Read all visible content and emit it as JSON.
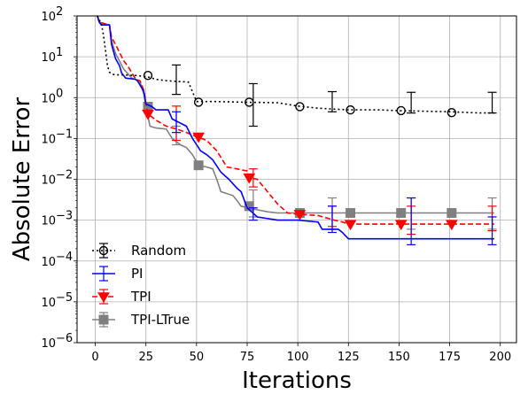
{
  "chart_data": {
    "type": "line",
    "xlabel": "Iterations",
    "ylabel": "Absolute Error",
    "xlim": [
      -9,
      208
    ],
    "ylim_log10": [
      -6,
      2
    ],
    "yscale": "log",
    "grid": true,
    "legend_position": "lower-left",
    "x_ticks": [
      {
        "value": 0,
        "label": "0"
      },
      {
        "value": 25,
        "label": "25"
      },
      {
        "value": 50,
        "label": "50"
      },
      {
        "value": 75,
        "label": "75"
      },
      {
        "value": 100,
        "label": "100"
      },
      {
        "value": 125,
        "label": "125"
      },
      {
        "value": 150,
        "label": "150"
      },
      {
        "value": 175,
        "label": "175"
      },
      {
        "value": 200,
        "label": "200"
      }
    ],
    "y_ticks": [
      {
        "exp": 2,
        "base": "10",
        "sup": "2"
      },
      {
        "exp": 1,
        "base": "10",
        "sup": "1"
      },
      {
        "exp": 0,
        "base": "10",
        "sup": "0"
      },
      {
        "exp": -1,
        "base": "10",
        "sup": "−1"
      },
      {
        "exp": -2,
        "base": "10",
        "sup": "−2"
      },
      {
        "exp": -3,
        "base": "10",
        "sup": "−3"
      },
      {
        "exp": -4,
        "base": "10",
        "sup": "−4"
      },
      {
        "exp": -5,
        "base": "10",
        "sup": "−5"
      },
      {
        "exp": -6,
        "base": "10",
        "sup": "−6"
      }
    ],
    "series": [
      {
        "name": "Random",
        "color": "#000000",
        "dash": "dotted",
        "marker": "circle-open",
        "line": [
          [
            1,
            100
          ],
          [
            2,
            80
          ],
          [
            3,
            65
          ],
          [
            4,
            35
          ],
          [
            5,
            15
          ],
          [
            6,
            6
          ],
          [
            7,
            4.2
          ],
          [
            8,
            3.8
          ],
          [
            10,
            3.6
          ],
          [
            14,
            3.6
          ],
          [
            20,
            3.5
          ],
          [
            26,
            3.2
          ],
          [
            30,
            2.8
          ],
          [
            35,
            2.6
          ],
          [
            40,
            2.5
          ],
          [
            46,
            2.4
          ],
          [
            50,
            0.8
          ],
          [
            60,
            0.8
          ],
          [
            75,
            0.77
          ],
          [
            90,
            0.75
          ],
          [
            100,
            0.62
          ],
          [
            110,
            0.55
          ],
          [
            125,
            0.5
          ],
          [
            140,
            0.5
          ],
          [
            150,
            0.48
          ],
          [
            175,
            0.45
          ],
          [
            190,
            0.42
          ],
          [
            197,
            0.42
          ]
        ],
        "markers": [
          [
            26,
            3.5
          ],
          [
            51,
            0.77
          ],
          [
            76,
            0.77
          ],
          [
            101,
            0.6
          ],
          [
            126,
            0.5
          ],
          [
            151,
            0.48
          ],
          [
            176,
            0.43
          ]
        ],
        "errorbars": [
          [
            40,
            2.5,
            1.2,
            6.3
          ],
          [
            78,
            0.77,
            0.2,
            2.2
          ],
          [
            117,
            0.55,
            0.45,
            1.4
          ],
          [
            156,
            0.5,
            0.42,
            1.35
          ],
          [
            196,
            0.42,
            0.42,
            1.35
          ]
        ]
      },
      {
        "name": "PI",
        "color": "#0000ff",
        "dash": "solid",
        "marker": "none",
        "line": [
          [
            1,
            100
          ],
          [
            2,
            70
          ],
          [
            3,
            60
          ],
          [
            7,
            60
          ],
          [
            8,
            20
          ],
          [
            10,
            9
          ],
          [
            12,
            6
          ],
          [
            13,
            4
          ],
          [
            15,
            3
          ],
          [
            20,
            2.8
          ],
          [
            21,
            2.5
          ],
          [
            24,
            1.4
          ],
          [
            25,
            0.7
          ],
          [
            28,
            0.6
          ],
          [
            30,
            0.5
          ],
          [
            36,
            0.5
          ],
          [
            38,
            0.3
          ],
          [
            45,
            0.2
          ],
          [
            48,
            0.1
          ],
          [
            52,
            0.05
          ],
          [
            55,
            0.04
          ],
          [
            58,
            0.03
          ],
          [
            62,
            0.015
          ],
          [
            66,
            0.01
          ],
          [
            70,
            0.006
          ],
          [
            72,
            0.005
          ],
          [
            75,
            0.002
          ],
          [
            80,
            0.0012
          ],
          [
            90,
            0.001
          ],
          [
            100,
            0.001
          ],
          [
            110,
            0.0009
          ],
          [
            112,
            0.0006
          ],
          [
            120,
            0.0006
          ],
          [
            122,
            0.0005
          ],
          [
            125,
            0.00035
          ],
          [
            160,
            0.00035
          ],
          [
            197,
            0.00035
          ]
        ],
        "markers": [],
        "errorbars": [
          [
            40,
            0.3,
            0.14,
            0.45
          ],
          [
            78,
            0.0014,
            0.001,
            0.002
          ],
          [
            117,
            0.0009,
            0.0005,
            0.0022
          ],
          [
            156,
            0.00035,
            0.00025,
            0.0035
          ],
          [
            196,
            0.00035,
            0.00025,
            0.0012
          ]
        ]
      },
      {
        "name": "TPI",
        "color": "#ff0000",
        "dash": "dashed",
        "marker": "triangle-down",
        "line": [
          [
            1,
            100
          ],
          [
            2,
            70
          ],
          [
            7,
            60
          ],
          [
            8,
            30
          ],
          [
            10,
            20
          ],
          [
            14,
            8
          ],
          [
            16,
            6
          ],
          [
            20,
            2.8
          ],
          [
            22,
            2.6
          ],
          [
            24,
            1.5
          ],
          [
            25,
            0.7
          ],
          [
            26,
            0.4
          ],
          [
            30,
            0.28
          ],
          [
            35,
            0.2
          ],
          [
            40,
            0.17
          ],
          [
            45,
            0.14
          ],
          [
            50,
            0.11
          ],
          [
            55,
            0.09
          ],
          [
            60,
            0.05
          ],
          [
            65,
            0.02
          ],
          [
            70,
            0.018
          ],
          [
            75,
            0.016
          ],
          [
            76,
            0.011
          ],
          [
            80,
            0.01
          ],
          [
            85,
            0.005
          ],
          [
            90,
            0.0025
          ],
          [
            95,
            0.0015
          ],
          [
            100,
            0.0014
          ],
          [
            110,
            0.0013
          ],
          [
            118,
            0.001
          ],
          [
            122,
            0.0009
          ],
          [
            125,
            0.0008
          ],
          [
            197,
            0.0008
          ]
        ],
        "markers": [
          [
            26,
            0.4
          ],
          [
            51,
            0.11
          ],
          [
            76,
            0.011
          ],
          [
            101,
            0.0014
          ],
          [
            126,
            0.0008
          ],
          [
            151,
            0.0008
          ],
          [
            176,
            0.0008
          ]
        ],
        "errorbars": [
          [
            40,
            0.17,
            0.09,
            0.62
          ],
          [
            78,
            0.011,
            0.0065,
            0.018
          ],
          [
            117,
            0.001,
            0.0007,
            0.0022
          ],
          [
            156,
            0.0008,
            0.00045,
            0.0022
          ],
          [
            196,
            0.0008,
            0.00055,
            0.0022
          ]
        ]
      },
      {
        "name": "TPI-LTrue",
        "color": "#808080",
        "dash": "solid",
        "marker": "square",
        "line": [
          [
            1,
            100
          ],
          [
            2,
            70
          ],
          [
            7,
            60
          ],
          [
            8,
            25
          ],
          [
            10,
            12
          ],
          [
            14,
            5
          ],
          [
            18,
            3
          ],
          [
            22,
            2.5
          ],
          [
            24,
            1.2
          ],
          [
            25,
            0.6
          ],
          [
            27,
            0.2
          ],
          [
            30,
            0.18
          ],
          [
            35,
            0.17
          ],
          [
            38,
            0.1
          ],
          [
            42,
            0.07
          ],
          [
            45,
            0.06
          ],
          [
            48,
            0.04
          ],
          [
            51,
            0.022
          ],
          [
            55,
            0.02
          ],
          [
            58,
            0.018
          ],
          [
            60,
            0.01
          ],
          [
            62,
            0.005
          ],
          [
            68,
            0.004
          ],
          [
            70,
            0.003
          ],
          [
            72,
            0.0022
          ],
          [
            75,
            0.002
          ],
          [
            80,
            0.0018
          ],
          [
            85,
            0.0016
          ],
          [
            90,
            0.0015
          ],
          [
            100,
            0.0015
          ],
          [
            197,
            0.0015
          ]
        ],
        "markers": [
          [
            26,
            0.6
          ],
          [
            51,
            0.022
          ],
          [
            76,
            0.0022
          ],
          [
            101,
            0.0015
          ],
          [
            126,
            0.0015
          ],
          [
            151,
            0.0015
          ],
          [
            176,
            0.0015
          ]
        ],
        "errorbars": [
          [
            40,
            0.1,
            0.07,
            0.2
          ],
          [
            78,
            0.002,
            0.0012,
            0.0055
          ],
          [
            117,
            0.0015,
            0.0006,
            0.0035
          ],
          [
            156,
            0.0015,
            0.0006,
            0.0035
          ],
          [
            196,
            0.0015,
            0.0006,
            0.0035
          ]
        ]
      }
    ]
  }
}
